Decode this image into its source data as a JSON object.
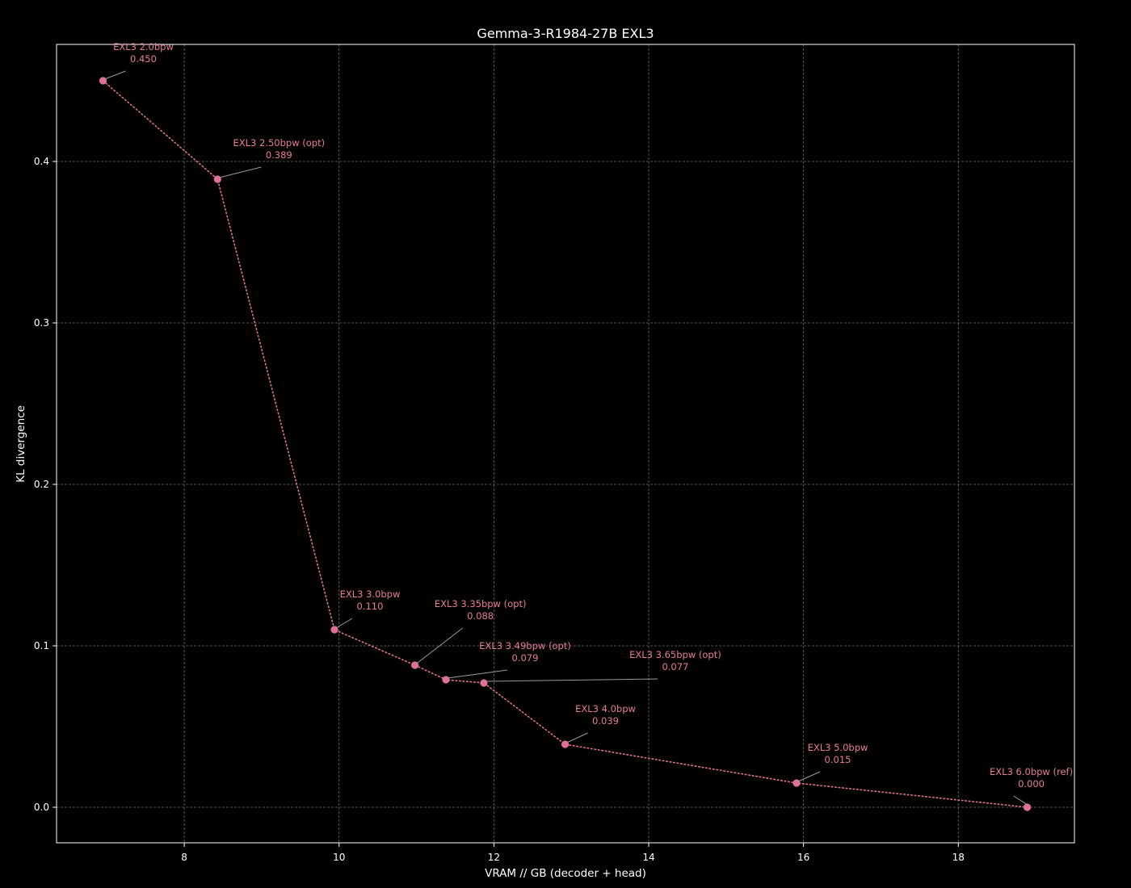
{
  "chart_data": {
    "type": "scatter",
    "title": "Gemma-3-R1984-27B EXL3",
    "xlabel": "VRAM // GB (decoder + head)",
    "ylabel": "KL divergence",
    "xlim": [
      6.35,
      19.5
    ],
    "ylim": [
      -0.022,
      0.4725
    ],
    "xticks": [
      8,
      10,
      12,
      14,
      16,
      18
    ],
    "yticks": [
      0.0,
      0.1,
      0.2,
      0.3,
      0.4
    ],
    "grid": true,
    "line_style": "dotted",
    "colors": {
      "background": "#000000",
      "series": "#e0709a",
      "label": "#e87aa0",
      "leader": "#9a9a9a",
      "grid": "#6a6a6a"
    },
    "series": [
      {
        "points": [
          {
            "x": 6.95,
            "y": 0.45,
            "label": "EXL3 2.0bpw",
            "value_label": "0.450"
          },
          {
            "x": 8.43,
            "y": 0.389,
            "label": "EXL3 2.50bpw (opt)",
            "value_label": "0.389"
          },
          {
            "x": 9.94,
            "y": 0.11,
            "label": "EXL3 3.0bpw",
            "value_label": "0.110"
          },
          {
            "x": 10.98,
            "y": 0.088,
            "label": "EXL3 3.35bpw (opt)",
            "value_label": "0.088"
          },
          {
            "x": 11.38,
            "y": 0.079,
            "label": "EXL3 3.49bpw (opt)",
            "value_label": "0.079"
          },
          {
            "x": 11.87,
            "y": 0.077,
            "label": "EXL3 3.65bpw (opt)",
            "value_label": "0.077"
          },
          {
            "x": 12.92,
            "y": 0.039,
            "label": "EXL3 4.0bpw",
            "value_label": "0.039"
          },
          {
            "x": 15.91,
            "y": 0.015,
            "label": "EXL3 5.0bpw",
            "value_label": "0.015"
          },
          {
            "x": 18.89,
            "y": 0.0,
            "label": "EXL3 6.0bpw (ref)",
            "value_label": "0.000"
          }
        ]
      }
    ]
  }
}
